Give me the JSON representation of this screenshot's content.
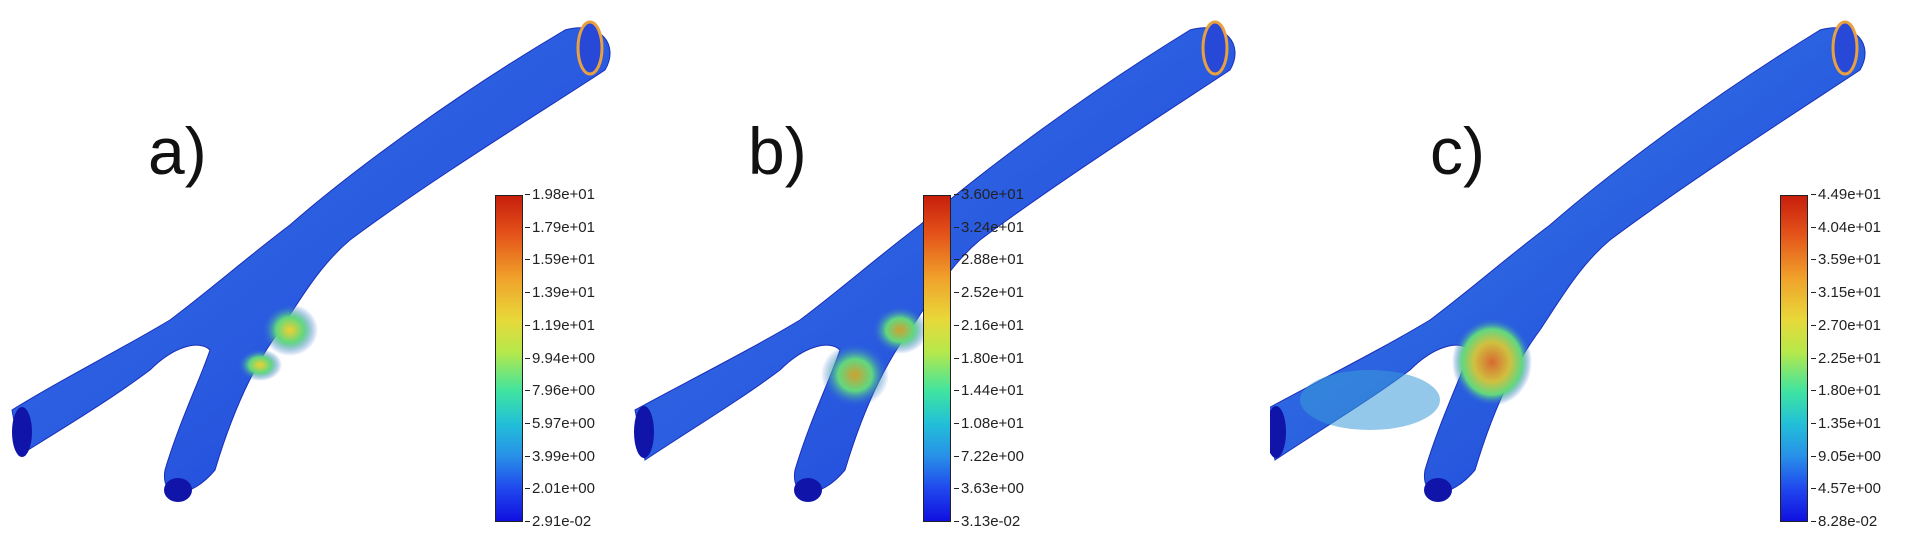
{
  "panels": [
    {
      "label": "a)",
      "colorbar": [
        "1.98e+01",
        "1.79e+01",
        "1.59e+01",
        "1.39e+01",
        "1.19e+01",
        "9.94e+00",
        "7.96e+00",
        "5.97e+00",
        "3.99e+00",
        "2.01e+00",
        "2.91e-02"
      ]
    },
    {
      "label": "b)",
      "colorbar": [
        "3.60e+01",
        "3.24e+01",
        "2.88e+01",
        "2.52e+01",
        "2.16e+01",
        "1.80e+01",
        "1.44e+01",
        "1.08e+01",
        "7.22e+00",
        "3.63e+00",
        "3.13e-02"
      ]
    },
    {
      "label": "c)",
      "colorbar": [
        "4.49e+01",
        "4.04e+01",
        "3.59e+01",
        "3.15e+01",
        "2.70e+01",
        "2.25e+01",
        "1.80e+01",
        "1.35e+01",
        "9.05e+00",
        "4.57e+00",
        "8.28e-02"
      ]
    }
  ]
}
